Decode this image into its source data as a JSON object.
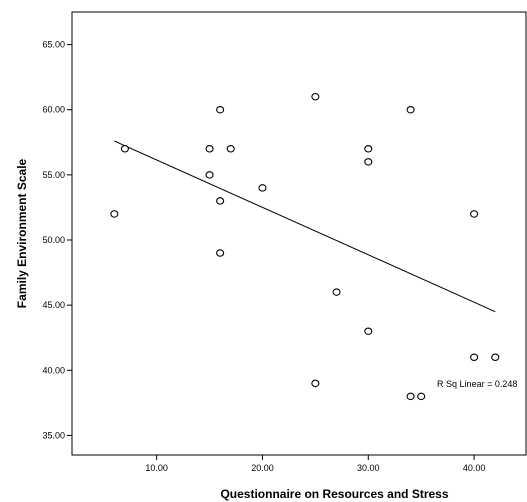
{
  "chart_data": {
    "type": "scatter",
    "xlabel": "Questionnaire on Resources and Stress",
    "ylabel": "Family Environment Scale",
    "xlim": [
      2.0,
      45.0
    ],
    "ylim": [
      33.5,
      67.5
    ],
    "x_ticks": [
      10,
      20,
      30,
      40
    ],
    "x_tick_labels": [
      "10.00",
      "20.00",
      "30.00",
      "40.00"
    ],
    "y_ticks": [
      35,
      40,
      45,
      50,
      55,
      60,
      65
    ],
    "y_tick_labels": [
      "35.00",
      "40.00",
      "45.00",
      "50.00",
      "55.00",
      "60.00",
      "65.00"
    ],
    "grid": false,
    "points": [
      {
        "x": 6,
        "y": 52
      },
      {
        "x": 7,
        "y": 57
      },
      {
        "x": 15,
        "y": 57
      },
      {
        "x": 15,
        "y": 55
      },
      {
        "x": 16,
        "y": 60
      },
      {
        "x": 16,
        "y": 53
      },
      {
        "x": 16,
        "y": 49
      },
      {
        "x": 17,
        "y": 57
      },
      {
        "x": 20,
        "y": 54
      },
      {
        "x": 25,
        "y": 61
      },
      {
        "x": 25,
        "y": 39
      },
      {
        "x": 27,
        "y": 46
      },
      {
        "x": 30,
        "y": 57
      },
      {
        "x": 30,
        "y": 56
      },
      {
        "x": 30,
        "y": 43
      },
      {
        "x": 34,
        "y": 60
      },
      {
        "x": 34,
        "y": 38
      },
      {
        "x": 35,
        "y": 38
      },
      {
        "x": 40,
        "y": 52
      },
      {
        "x": 40,
        "y": 41
      },
      {
        "x": 42,
        "y": 41
      }
    ],
    "fit_line": {
      "x1": 6,
      "y1": 57.6,
      "x2": 42,
      "y2": 44.5
    },
    "annotation": {
      "text": "R Sq Linear = 0.248",
      "x": 36.5,
      "y": 38.7
    }
  }
}
